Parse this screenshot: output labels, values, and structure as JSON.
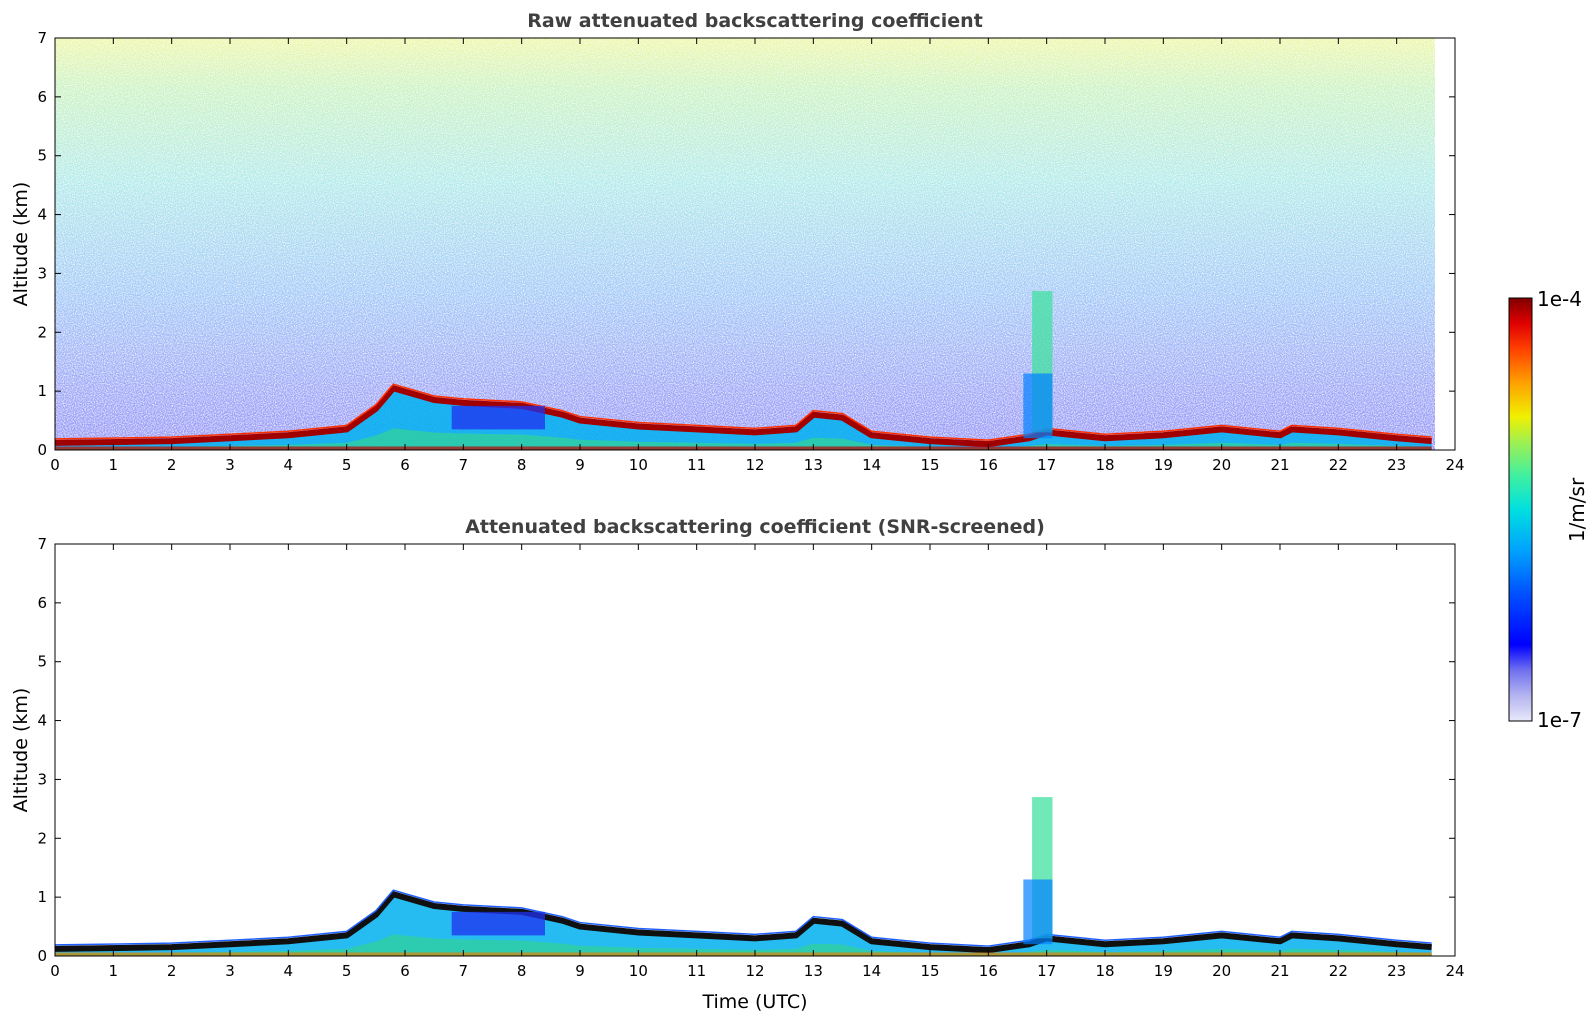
{
  "chart_data": [
    {
      "type": "heatmap",
      "title": "Raw attenuated backscattering coefficient",
      "xlabel": "",
      "ylabel": "Altitude (km)",
      "xlim": [
        0,
        24
      ],
      "ylim": [
        0,
        7
      ],
      "xticks": [
        "0",
        "1",
        "2",
        "3",
        "4",
        "5",
        "6",
        "7",
        "8",
        "9",
        "10",
        "11",
        "12",
        "13",
        "14",
        "15",
        "16",
        "17",
        "18",
        "19",
        "20",
        "21",
        "22",
        "23",
        "24"
      ],
      "yticks": [
        "0",
        "1",
        "2",
        "3",
        "4",
        "5",
        "6",
        "7"
      ],
      "data_end_time": 23.6,
      "layer_top_km": {
        "x": [
          0,
          2,
          3,
          4,
          5,
          5.5,
          5.8,
          6.5,
          7,
          8,
          8.7,
          9,
          10,
          11,
          12,
          12.7,
          13,
          13.5,
          14,
          15,
          16,
          16.7,
          17,
          18,
          19,
          20,
          21,
          21.2,
          22,
          23,
          23.6
        ],
        "y": [
          0.12,
          0.15,
          0.2,
          0.25,
          0.35,
          0.7,
          1.05,
          0.85,
          0.8,
          0.75,
          0.6,
          0.5,
          0.4,
          0.35,
          0.3,
          0.35,
          0.6,
          0.55,
          0.25,
          0.15,
          0.1,
          0.2,
          0.3,
          0.2,
          0.25,
          0.35,
          0.25,
          0.35,
          0.3,
          0.2,
          0.15
        ]
      },
      "cloud_feature": {
        "time_range": [
          16.6,
          17.1
        ],
        "altitude_range_km": [
          0.3,
          2.7
        ]
      }
    },
    {
      "type": "heatmap",
      "title": "Attenuated backscattering coefficient (SNR-screened)",
      "xlabel": "Time (UTC)",
      "ylabel": "Altitude (km)",
      "xlim": [
        0,
        24
      ],
      "ylim": [
        0,
        7
      ],
      "xticks": [
        "0",
        "1",
        "2",
        "3",
        "4",
        "5",
        "6",
        "7",
        "8",
        "9",
        "10",
        "11",
        "12",
        "13",
        "14",
        "15",
        "16",
        "17",
        "18",
        "19",
        "20",
        "21",
        "22",
        "23",
        "24"
      ],
      "yticks": [
        "0",
        "1",
        "2",
        "3",
        "4",
        "5",
        "6",
        "7"
      ],
      "data_end_time": 23.6
    }
  ],
  "colorbar": {
    "label": "1/m/sr",
    "max_label": "1e-4",
    "min_label": "1e-7",
    "colors": [
      "#e8e8fa",
      "#b4b4f0",
      "#7070f0",
      "#0000ff",
      "#0050ff",
      "#00a0ff",
      "#00e0e0",
      "#40f0a0",
      "#a0f050",
      "#f0f000",
      "#ffa000",
      "#ff4000",
      "#e00000",
      "#800000"
    ]
  }
}
